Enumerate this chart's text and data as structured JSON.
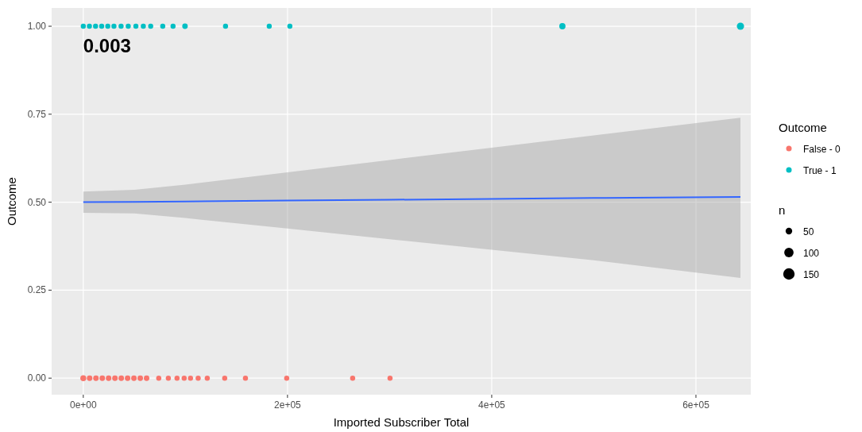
{
  "chart_data": {
    "type": "bubble",
    "xlabel": "Imported Subscriber Total",
    "ylabel": "Outcome",
    "legend_title": "Outcome",
    "legend": "right",
    "grid": true,
    "annotations": [
      "0.003",
      "n"
    ],
    "xlim": [
      -31000,
      653700
    ],
    "ylim": [
      -0.047,
      1.052
    ],
    "xticks": [
      {
        "value": 0,
        "label": "0e+00"
      },
      {
        "value": 200000,
        "label": "2e+05"
      },
      {
        "value": 400000,
        "label": "4e+05"
      },
      {
        "value": 600000,
        "label": "6e+05"
      }
    ],
    "yticks": [
      {
        "value": 0,
        "label": "0.00"
      },
      {
        "value": 0.25,
        "label": "0.25"
      },
      {
        "value": 0.5,
        "label": "0.50"
      },
      {
        "value": 0.75,
        "label": "0.75"
      },
      {
        "value": 1,
        "label": "1.00"
      }
    ],
    "size_legend": [
      50,
      100,
      150
    ],
    "series": [
      {
        "type": "line",
        "color": "#3366ff",
        "x": [
          0,
          50000,
          100000,
          200000,
          300000,
          400000,
          500000,
          643600
        ],
        "values": [
          0.5,
          0.501,
          0.502,
          0.505,
          0.507,
          0.509,
          0.512,
          0.515
        ],
        "lower": [
          0.47,
          0.468,
          0.455,
          0.425,
          0.395,
          0.365,
          0.335,
          0.285
        ],
        "upper": [
          0.53,
          0.535,
          0.55,
          0.585,
          0.62,
          0.655,
          0.69,
          0.74
        ]
      },
      {
        "name": "False - 0",
        "color": "#f8766d",
        "x": [
          0,
          6200,
          12400,
          18600,
          24800,
          31000,
          37200,
          43400,
          49600,
          55800,
          62000,
          73900,
          83300,
          91800,
          98800,
          105000,
          112500,
          121400,
          138500,
          158800,
          199200,
          263800,
          300400
        ],
        "values": [
          0,
          0,
          0,
          0,
          0,
          0,
          0,
          0,
          0,
          0,
          0,
          0,
          0,
          0,
          0,
          0,
          0,
          0,
          0,
          0,
          0,
          0,
          0
        ],
        "sizes": [
          40,
          35,
          35,
          35,
          35,
          35,
          35,
          35,
          35,
          35,
          35,
          30,
          30,
          30,
          30,
          30,
          30,
          30,
          30,
          30,
          30,
          30,
          30
        ]
      },
      {
        "name": "True - 1",
        "color": "#00bfc4",
        "x": [
          0,
          6000,
          12000,
          18000,
          24000,
          30000,
          37000,
          44000,
          51500,
          58800,
          66000,
          77800,
          87900,
          99600,
          139300,
          182100,
          202300,
          469200,
          643600
        ],
        "values": [
          1,
          1,
          1,
          1,
          1,
          1,
          1,
          1,
          1,
          1,
          1,
          1,
          1,
          1,
          1,
          1,
          1,
          1,
          1
        ],
        "sizes": [
          30,
          30,
          30,
          30,
          30,
          30,
          30,
          30,
          30,
          30,
          30,
          30,
          30,
          35,
          30,
          30,
          30,
          45,
          60
        ]
      }
    ]
  }
}
